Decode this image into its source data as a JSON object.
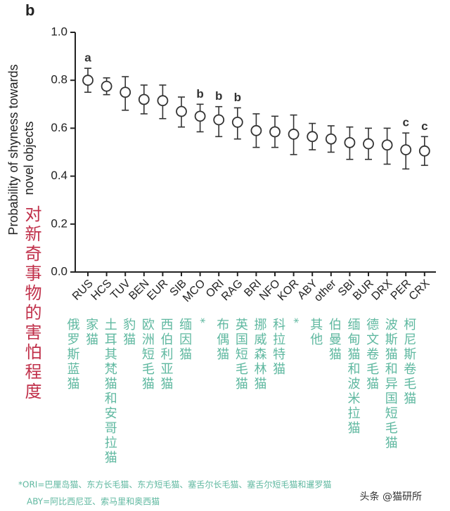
{
  "chart_data": {
    "type": "errorpoint",
    "panel": "b",
    "ylabel": [
      "Probability of shyness towards",
      "novel objects"
    ],
    "ylabel_cn": "对新奇事物的害怕程度",
    "categories": [
      "RUS",
      "HCS",
      "TUV",
      "BEN",
      "EUR",
      "SIB",
      "MCO",
      "ORI",
      "RAG",
      "BRI",
      "NFO",
      "KOR",
      "ABY",
      "other",
      "SBI",
      "BUR",
      "DRX",
      "PER",
      "CRX"
    ],
    "values": [
      0.8,
      0.775,
      0.75,
      0.72,
      0.715,
      0.67,
      0.65,
      0.635,
      0.625,
      0.59,
      0.585,
      0.575,
      0.565,
      0.555,
      0.54,
      0.535,
      0.53,
      0.51,
      0.505
    ],
    "lower": [
      0.75,
      0.74,
      0.675,
      0.66,
      0.64,
      0.605,
      0.585,
      0.565,
      0.555,
      0.52,
      0.52,
      0.49,
      0.51,
      0.5,
      0.47,
      0.47,
      0.45,
      0.43,
      0.445
    ],
    "upper": [
      0.85,
      0.81,
      0.815,
      0.78,
      0.78,
      0.73,
      0.7,
      0.69,
      0.685,
      0.66,
      0.65,
      0.655,
      0.62,
      0.61,
      0.605,
      0.6,
      0.6,
      0.58,
      0.565
    ],
    "letters": [
      "a",
      null,
      null,
      null,
      null,
      null,
      "b",
      "b",
      "b",
      null,
      null,
      null,
      null,
      null,
      null,
      null,
      null,
      "c",
      "c"
    ],
    "cn_labels": [
      "俄罗斯蓝猫",
      "家猫",
      "土耳其梵猫和安哥拉猫",
      "豹猫",
      "欧洲短毛猫",
      "西伯利亚猫",
      "缅因猫",
      "*",
      "布偶猫",
      "英国短毛猫",
      "挪威森林猫",
      "科拉特猫",
      "*",
      "其他",
      "伯曼猫",
      "缅甸猫和波米拉猫",
      "德文卷毛猫",
      "波斯猫和异国短毛猫",
      "柯尼斯卷毛猫"
    ],
    "ylim": [
      0,
      1
    ],
    "yticks": [
      {
        "value": 0,
        "label": "0.0"
      },
      0.2,
      0.4,
      0.6,
      0.8,
      {
        "value": 1,
        "label": "1.0"
      }
    ],
    "color": "#333333",
    "cn_color": "#5fb8a0",
    "cn_title_color": "#c0304a",
    "footnotes": [
      "*ORI=巴厘岛猫、东方长毛猫、东方短毛猫、塞舌尔长毛猫、塞舌尔短毛猫和暹罗猫",
      "ABY=阿比西尼亚、索马里和奥西猫"
    ],
    "watermark": "头条 @猫研所"
  }
}
